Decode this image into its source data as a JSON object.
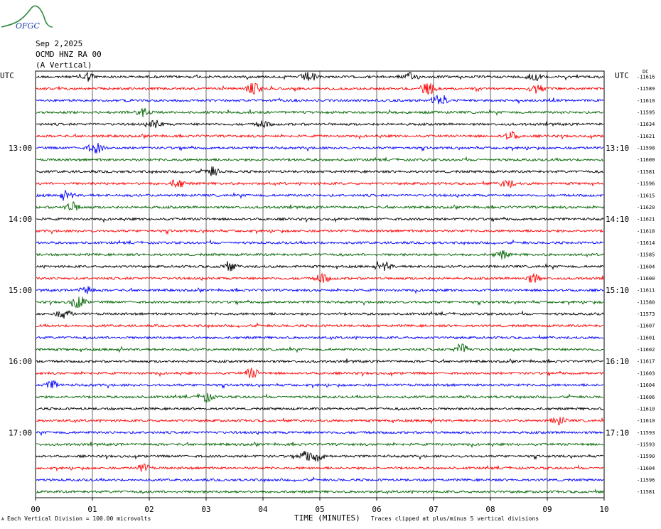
{
  "logo": {
    "text": "OFGC",
    "color": "#2a8a3a",
    "text_color": "#1a3fa8"
  },
  "header": {
    "date": "Sep 2,2025",
    "station": "OCMD HNZ RA 00",
    "component": "(A Vertical)"
  },
  "utc_left": "UTC",
  "utc_right": "UTC",
  "dc_label": "DC",
  "footer": {
    "division": "Each Vertical Division =  100.00 microvolts",
    "axis_title": "TIME (MINUTES)",
    "clip_note": "Traces clipped at plus/minus 5 vertical divisions",
    "corner_mark": "A"
  },
  "chart_data": {
    "type": "line",
    "title": "",
    "xlabel": "TIME (MINUTES)",
    "xlim": [
      0,
      10
    ],
    "x_ticks": [
      "00",
      "01",
      "02",
      "03",
      "04",
      "05",
      "06",
      "07",
      "08",
      "09",
      "10"
    ],
    "grid": true,
    "trace_colors": [
      "#000000",
      "#ff0000",
      "#0000ff",
      "#006400"
    ],
    "left_time_labels": [
      {
        "row": 6,
        "text": "13:00"
      },
      {
        "row": 12,
        "text": "14:00"
      },
      {
        "row": 18,
        "text": "15:00"
      },
      {
        "row": 24,
        "text": "16:00"
      },
      {
        "row": 30,
        "text": "17:00"
      }
    ],
    "right_time_labels": [
      {
        "row": 6,
        "text": "13:10"
      },
      {
        "row": 12,
        "text": "14:10"
      },
      {
        "row": 18,
        "text": "15:10"
      },
      {
        "row": 24,
        "text": "16:10"
      },
      {
        "row": 30,
        "text": "17:10"
      }
    ],
    "dc_offsets": [
      -11616,
      -11589,
      -11610,
      -11595,
      -11634,
      -11621,
      -11598,
      -11600,
      -11581,
      -11596,
      -11615,
      -11620,
      -11621,
      -11618,
      -11614,
      -11585,
      -11604,
      -11600,
      -11611,
      -11580,
      -11573,
      -11607,
      -11601,
      -11602,
      -11617,
      -11603,
      -11604,
      -11606,
      -11610,
      -11610,
      -11593,
      -11593,
      -11590,
      -11604,
      -11596,
      -11581
    ],
    "events": [
      {
        "row": 0,
        "x": 0.9,
        "amp": 3
      },
      {
        "row": 0,
        "x": 4.8,
        "amp": 3
      },
      {
        "row": 0,
        "x": 6.6,
        "amp": 2.5
      },
      {
        "row": 0,
        "x": 8.75,
        "amp": 3
      },
      {
        "row": 1,
        "x": 3.85,
        "amp": 5
      },
      {
        "row": 1,
        "x": 6.9,
        "amp": 4
      },
      {
        "row": 1,
        "x": 8.8,
        "amp": 3
      },
      {
        "row": 2,
        "x": 7.1,
        "amp": 4
      },
      {
        "row": 3,
        "x": 1.9,
        "amp": 2.5
      },
      {
        "row": 4,
        "x": 2.1,
        "amp": 2.5
      },
      {
        "row": 4,
        "x": 4.0,
        "amp": 2
      },
      {
        "row": 5,
        "x": 8.35,
        "amp": 3
      },
      {
        "row": 6,
        "x": 1.05,
        "amp": 4
      },
      {
        "row": 8,
        "x": 3.1,
        "amp": 3
      },
      {
        "row": 9,
        "x": 2.5,
        "amp": 3
      },
      {
        "row": 9,
        "x": 8.3,
        "amp": 2.5
      },
      {
        "row": 10,
        "x": 0.55,
        "amp": 2.5
      },
      {
        "row": 11,
        "x": 0.65,
        "amp": 3
      },
      {
        "row": 15,
        "x": 8.2,
        "amp": 2.5
      },
      {
        "row": 16,
        "x": 3.4,
        "amp": 3
      },
      {
        "row": 16,
        "x": 6.15,
        "amp": 2.5
      },
      {
        "row": 17,
        "x": 5.05,
        "amp": 3
      },
      {
        "row": 17,
        "x": 8.75,
        "amp": 3
      },
      {
        "row": 18,
        "x": 0.9,
        "amp": 2.5
      },
      {
        "row": 19,
        "x": 0.75,
        "amp": 5
      },
      {
        "row": 20,
        "x": 0.5,
        "amp": 3
      },
      {
        "row": 23,
        "x": 7.5,
        "amp": 4
      },
      {
        "row": 25,
        "x": 3.8,
        "amp": 3
      },
      {
        "row": 26,
        "x": 0.3,
        "amp": 2.5
      },
      {
        "row": 27,
        "x": 3.0,
        "amp": 3
      },
      {
        "row": 29,
        "x": 9.2,
        "amp": 2.5
      },
      {
        "row": 32,
        "x": 4.75,
        "amp": 3
      },
      {
        "row": 32,
        "x": 4.95,
        "amp": 3
      },
      {
        "row": 33,
        "x": 1.9,
        "amp": 2.5
      }
    ]
  }
}
